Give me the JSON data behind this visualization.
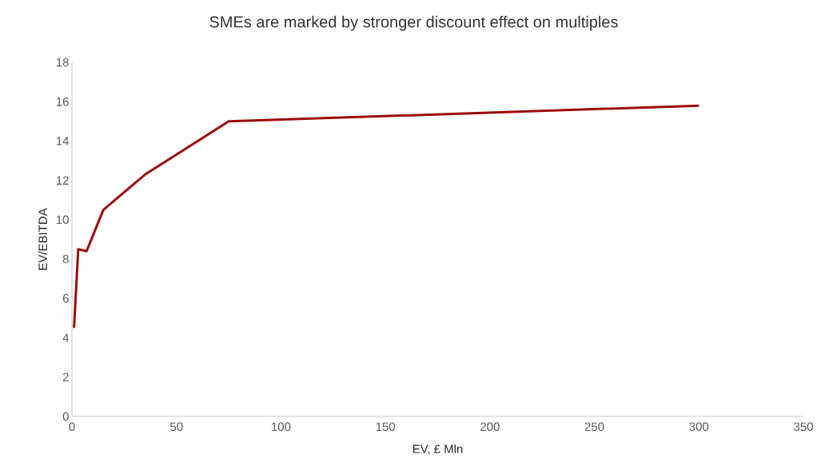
{
  "chart_data": {
    "type": "line",
    "title": "SMEs are marked by stronger discount effect on multiples",
    "xlabel": "EV, £ Mln",
    "ylabel": "EV/EBITDA",
    "series": [
      {
        "color": "#9b0b0b",
        "x": [
          1,
          3,
          7,
          15,
          35,
          75,
          300
        ],
        "values": [
          4.5,
          8.5,
          8.4,
          10.5,
          12.3,
          15.0,
          15.8
        ]
      }
    ],
    "xlim": [
      0,
      350
    ],
    "xticks": [
      0,
      50,
      100,
      150,
      200,
      250,
      300,
      350
    ],
    "ylim": [
      0,
      18
    ],
    "yticks": [
      0,
      2,
      4,
      6,
      8,
      10,
      12,
      14,
      16,
      18
    ],
    "marker": "none",
    "line_style": "solid"
  }
}
